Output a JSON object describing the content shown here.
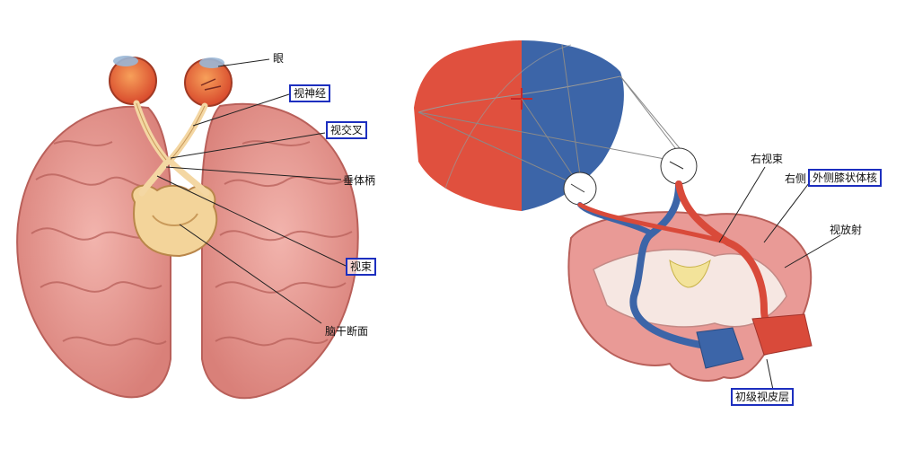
{
  "left_labels": {
    "eye": "眼",
    "optic_nerve": "视神经",
    "optic_chiasm": "视交叉",
    "pituitary_stalk": "垂体柄",
    "optic_tract": "视束",
    "brainstem_section": "脑干断面"
  },
  "right_labels": {
    "right_optic_tract": "右视束",
    "right_prefix": "右侧",
    "lgn": "外侧膝状体核",
    "optic_radiation": "视放射",
    "primary_visual_cortex": "初级视皮层"
  },
  "colors": {
    "left_field": "#e0503e",
    "right_field": "#3c65a8",
    "brain_pink": "#e99a96",
    "highlight_box": "#1d2fbf"
  }
}
